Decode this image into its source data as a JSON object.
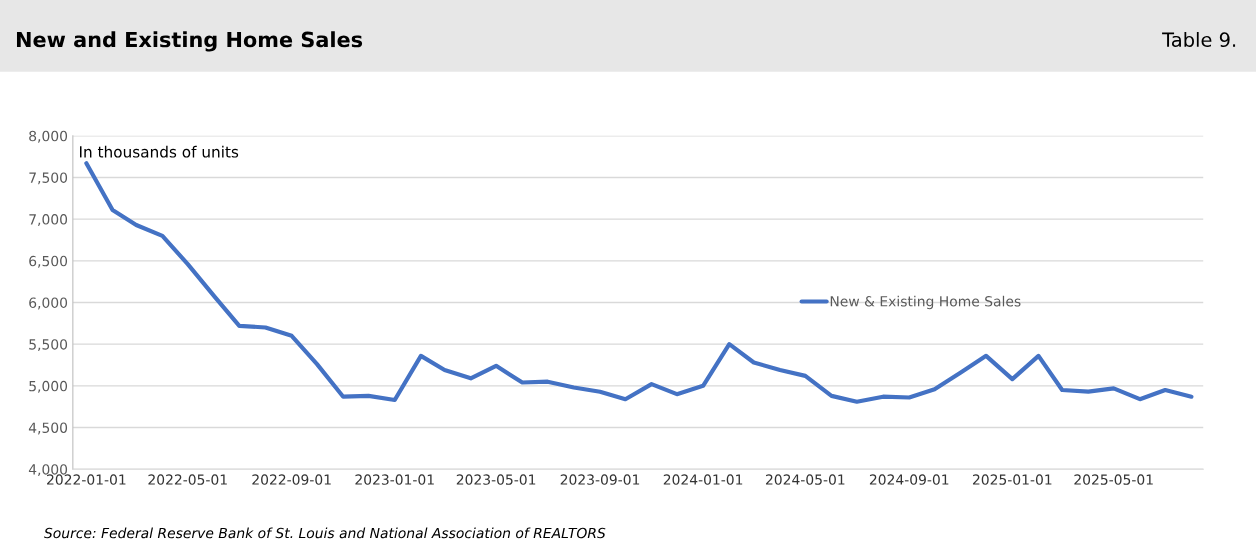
{
  "chart_data": {
    "type": "line",
    "title": "New and Existing Home Sales",
    "subtitle": "Table 9.",
    "annotations": [
      "In thousands of units",
      "Source: Federal Reserve Bank of St. Louis and National Association of REALTORS"
    ],
    "x": [
      "2022-01-01",
      "2022-02-01",
      "2022-03-01",
      "2022-04-01",
      "2022-05-01",
      "2022-06-01",
      "2022-07-01",
      "2022-08-01",
      "2022-09-01",
      "2022-10-01",
      "2022-11-01",
      "2022-12-01",
      "2023-01-01",
      "2023-02-01",
      "2023-03-01",
      "2023-04-01",
      "2023-05-01",
      "2023-06-01",
      "2023-07-01",
      "2023-08-01",
      "2023-09-01",
      "2023-10-01",
      "2023-11-01",
      "2023-12-01",
      "2024-01-01",
      "2024-02-01",
      "2024-03-01",
      "2024-04-01",
      "2024-05-01",
      "2024-06-01",
      "2024-07-01",
      "2024-08-01",
      "2024-09-01",
      "2024-10-01",
      "2024-11-01",
      "2024-12-01",
      "2025-01-01",
      "2025-02-01",
      "2025-03-01",
      "2025-04-01",
      "2025-05-01",
      "2025-06-01",
      "2025-07-01",
      "2025-08-01"
    ],
    "series": [
      {
        "name": "New & Existing Home Sales",
        "color": "#4472c4",
        "values": [
          7670,
          7110,
          6930,
          6800,
          6460,
          6080,
          5720,
          5700,
          5600,
          5260,
          4870,
          4880,
          4830,
          5360,
          5190,
          5090,
          5240,
          5040,
          5050,
          4980,
          4930,
          4840,
          5020,
          4900,
          5000,
          5500,
          5280,
          5190,
          5120,
          4880,
          4810,
          4870,
          4860,
          4960,
          5160,
          5360,
          5080,
          5360,
          4950,
          4930,
          4970,
          4840,
          4950,
          4870
        ]
      }
    ],
    "xlim": [
      "2021-12-16",
      "2025-08-15"
    ],
    "xticks": [
      {
        "value": "2022-01-01",
        "label": "2022-01-01"
      },
      {
        "value": "2022-05-01",
        "label": "2022-05-01"
      },
      {
        "value": "2022-09-01",
        "label": "2022-09-01"
      },
      {
        "value": "2023-01-01",
        "label": "2023-01-01"
      },
      {
        "value": "2023-05-01",
        "label": "2023-05-01"
      },
      {
        "value": "2023-09-01",
        "label": "2023-09-01"
      },
      {
        "value": "2024-01-01",
        "label": "2024-01-01"
      },
      {
        "value": "2024-05-01",
        "label": "2024-05-01"
      },
      {
        "value": "2024-09-01",
        "label": "2024-09-01"
      },
      {
        "value": "2025-01-01",
        "label": "2025-01-01"
      },
      {
        "value": "2025-05-01",
        "label": "2025-05-01"
      }
    ],
    "ylim": [
      4000,
      8000
    ],
    "yticks": [
      {
        "value": 4000,
        "label": "4,000"
      },
      {
        "value": 4500,
        "label": "4,500"
      },
      {
        "value": 5000,
        "label": "5,000"
      },
      {
        "value": 5500,
        "label": "5,500"
      },
      {
        "value": 6000,
        "label": "6,000"
      },
      {
        "value": 6500,
        "label": "6,500"
      },
      {
        "value": 7000,
        "label": "7,000"
      },
      {
        "value": 7500,
        "label": "7,500"
      },
      {
        "value": 8000,
        "label": "8,000"
      }
    ],
    "grid": "y",
    "legend": "center right",
    "marker": "none",
    "line_style": "solid"
  }
}
